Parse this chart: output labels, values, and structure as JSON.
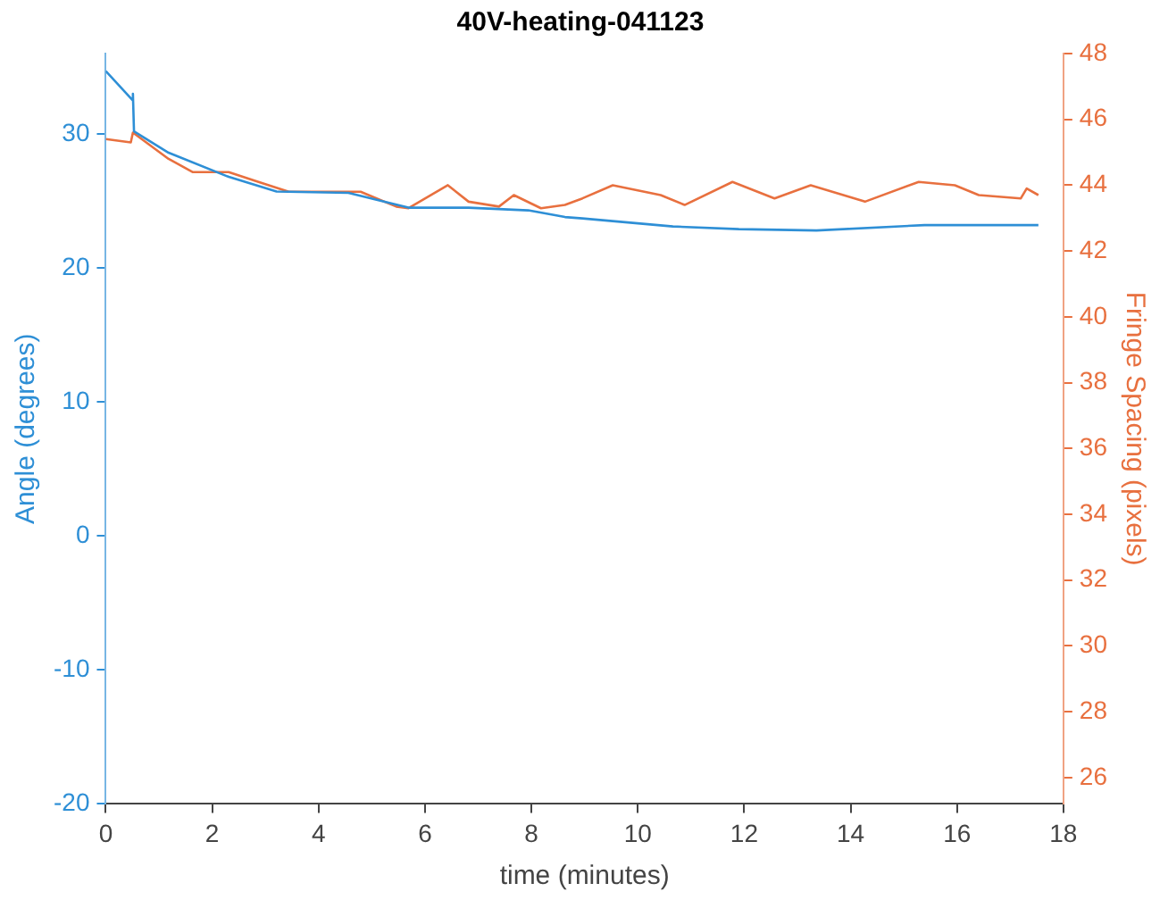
{
  "chart_data": {
    "type": "line",
    "title": "40V-heating-041123",
    "xlabel": "time (minutes)",
    "ylabel": "Angle (degrees)",
    "y2label": "Fringe Spacing (pixels)",
    "xlim": [
      0,
      18
    ],
    "xticks": [
      0,
      2,
      4,
      6,
      8,
      10,
      12,
      14,
      16,
      18
    ],
    "ylim": [
      -20,
      36
    ],
    "yticks": [
      -20,
      -10,
      0,
      10,
      20,
      30
    ],
    "y2lim": [
      25.2,
      48
    ],
    "y2ticks": [
      26,
      28,
      30,
      32,
      34,
      36,
      38,
      40,
      42,
      44,
      46,
      48
    ],
    "grid": false,
    "legend": false,
    "marker": "none",
    "line_style": "solid",
    "series": [
      {
        "color": "#2e8fd6",
        "x": [
          0,
          0.51,
          0.51,
          0.53,
          1.18,
          2.31,
          3.21,
          4.56,
          5.69,
          6.82,
          7.94,
          8.63,
          8.96,
          10.66,
          11.9,
          13.36,
          15.39,
          17.53
        ],
        "values": [
          34.7,
          32.5,
          33.0,
          30.2,
          28.6,
          26.8,
          25.7,
          25.6,
          24.5,
          24.5,
          24.3,
          23.8,
          23.7,
          23.1,
          22.9,
          22.8,
          23.2,
          23.2
        ]
      },
      {
        "color": "#e8703f",
        "axis": "y2",
        "x": [
          0,
          0.47,
          0.51,
          1.18,
          1.63,
          2.31,
          2.87,
          3.44,
          4.11,
          4.79,
          5.46,
          5.69,
          6.43,
          6.82,
          7.39,
          7.67,
          8.18,
          8.63,
          8.96,
          9.53,
          10.43,
          10.88,
          11.78,
          12.57,
          13.25,
          14.27,
          15.28,
          15.96,
          16.41,
          17.2,
          17.31,
          17.53
        ],
        "values": [
          45.4,
          45.3,
          45.6,
          44.8,
          44.4,
          44.4,
          44.1,
          43.8,
          43.8,
          43.8,
          43.35,
          43.3,
          44.0,
          43.5,
          43.35,
          43.7,
          43.3,
          43.4,
          43.6,
          44.0,
          43.7,
          43.4,
          44.1,
          43.6,
          44.0,
          43.5,
          44.1,
          44.0,
          43.7,
          43.6,
          43.9,
          43.7
        ]
      }
    ]
  }
}
